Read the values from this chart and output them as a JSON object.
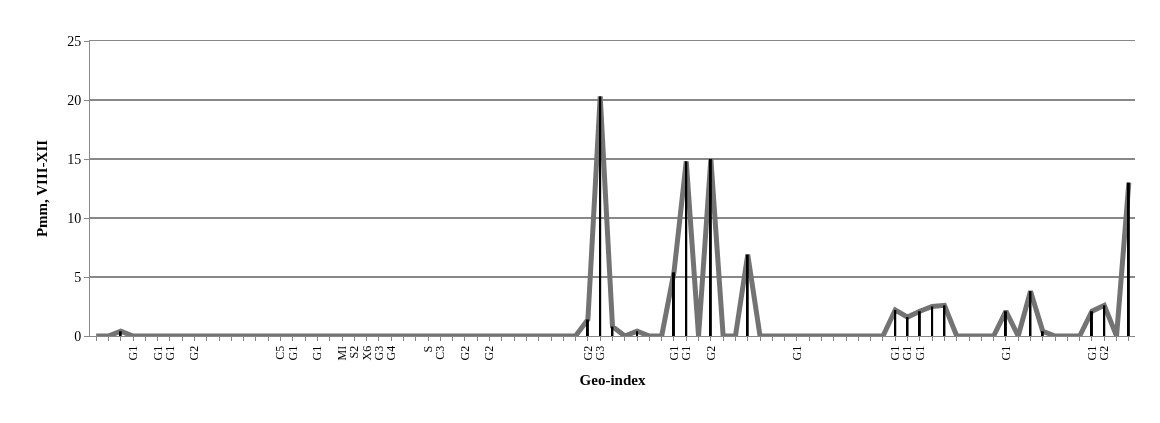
{
  "chart_data": {
    "type": "line",
    "xlabel": "Geo-index",
    "ylabel": "Pmm, VIII-XII",
    "categories": [
      null,
      null,
      null,
      "G1",
      null,
      "G1",
      "G1",
      null,
      "G2",
      null,
      null,
      null,
      null,
      null,
      null,
      "C5",
      "G1",
      null,
      "G1",
      null,
      "MI",
      "S2",
      "X6",
      "G3",
      "G4",
      null,
      null,
      "S",
      "C3",
      null,
      "G2",
      null,
      "G2",
      null,
      null,
      null,
      null,
      null,
      null,
      null,
      "G2",
      "G3",
      null,
      null,
      null,
      null,
      null,
      "G1",
      "G1",
      null,
      "G2",
      null,
      null,
      null,
      null,
      null,
      null,
      "G1",
      null,
      null,
      null,
      null,
      null,
      null,
      null,
      "G1",
      "G1",
      "G1",
      null,
      null,
      null,
      null,
      null,
      null,
      "G1",
      null,
      null,
      null,
      null,
      null,
      null,
      "G1",
      "G2",
      null,
      null
    ],
    "series": [
      {
        "type": "bar",
        "color": "#000000",
        "values": [
          0,
          0,
          0.4,
          0,
          0,
          0,
          0,
          0,
          0,
          0,
          0,
          0,
          0,
          0,
          0,
          0,
          0,
          0,
          0,
          0,
          0,
          0,
          0,
          0,
          0,
          0,
          0,
          0,
          0,
          0,
          0,
          0,
          0,
          0,
          0,
          0,
          0,
          0,
          0,
          0,
          1.4,
          20.3,
          0.8,
          0,
          0.4,
          0,
          0,
          5.4,
          14.8,
          0,
          15.0,
          0,
          0,
          6.9,
          0,
          0,
          0,
          0,
          0,
          0,
          0,
          0,
          0,
          0,
          0,
          2.2,
          1.6,
          2.1,
          2.5,
          2.6,
          0,
          0,
          0,
          0,
          2.1,
          0,
          3.8,
          0.4,
          0,
          0,
          0,
          2.1,
          2.6,
          0,
          13.0
        ]
      },
      {
        "color": "#737373",
        "values": [
          0,
          0,
          0.4,
          0,
          0,
          0,
          0,
          0,
          0,
          0,
          0,
          0,
          0,
          0,
          0,
          0,
          0,
          0,
          0,
          0,
          0,
          0,
          0,
          0,
          0,
          0,
          0,
          0,
          0,
          0,
          0,
          0,
          0,
          0,
          0,
          0,
          0,
          0,
          0,
          0,
          1.4,
          20.3,
          0.8,
          0,
          0.4,
          0,
          0,
          5.4,
          14.8,
          0,
          15.0,
          0,
          0,
          6.9,
          0,
          0,
          0,
          0,
          0,
          0,
          0,
          0,
          0,
          0,
          0,
          2.2,
          1.6,
          2.1,
          2.5,
          2.6,
          0,
          0,
          0,
          0,
          2.1,
          0,
          3.8,
          0.4,
          0,
          0,
          0,
          2.1,
          2.6,
          0,
          13.0
        ]
      }
    ],
    "ylim": [
      0,
      25
    ],
    "yticks": [
      0,
      5,
      10,
      15,
      20,
      25
    ],
    "grid": "y",
    "marker": "none",
    "line_style": "solid"
  }
}
